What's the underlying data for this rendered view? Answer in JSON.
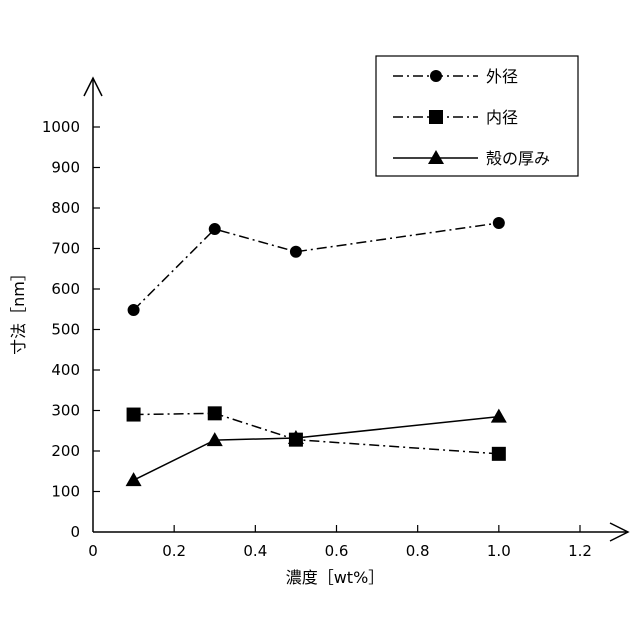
{
  "chart_data": {
    "type": "line",
    "title": "",
    "xlabel": "濃度［wt%］",
    "ylabel": "寸法［nm］",
    "xlim": [
      0,
      1.2
    ],
    "ylim": [
      0,
      1000
    ],
    "x_ticks": [
      "0",
      "0.2",
      "0.4",
      "0.6",
      "0.8",
      "1.0",
      "1.2"
    ],
    "y_ticks": [
      "0",
      "100",
      "200",
      "300",
      "400",
      "500",
      "600",
      "700",
      "800",
      "900",
      "1000"
    ],
    "grid": false,
    "legend_position": "top-right",
    "series": [
      {
        "name": "外径",
        "marker": "circle",
        "line_style": "dash-dot",
        "x": [
          0.1,
          0.3,
          0.5,
          1.0
        ],
        "values": [
          548,
          748,
          692,
          763
        ]
      },
      {
        "name": "内径",
        "marker": "square",
        "line_style": "dash-dot",
        "x": [
          0.1,
          0.3,
          0.5,
          1.0
        ],
        "values": [
          290,
          293,
          228,
          193
        ]
      },
      {
        "name": "殻の厚み",
        "marker": "triangle",
        "line_style": "solid",
        "x": [
          0.1,
          0.3,
          0.5,
          1.0
        ],
        "values": [
          128,
          227,
          232,
          285
        ]
      }
    ]
  }
}
